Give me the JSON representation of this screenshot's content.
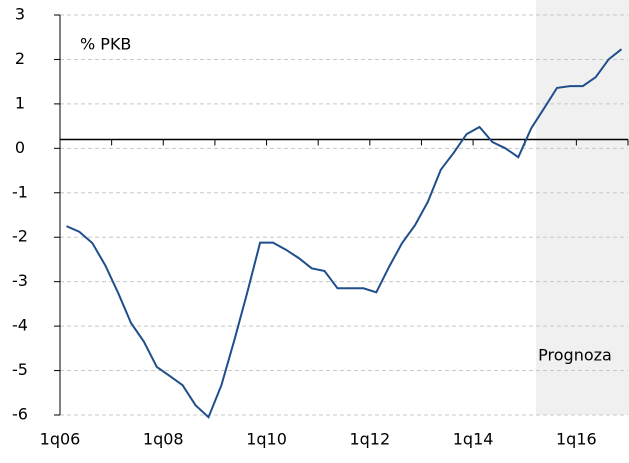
{
  "chart_data": {
    "type": "line",
    "unit_label": "% PKB",
    "annotation": "Prognoza",
    "categories": [
      "1q06",
      null,
      null,
      null,
      null,
      null,
      null,
      null,
      "1q08",
      null,
      null,
      null,
      null,
      null,
      null,
      null,
      "1q10",
      null,
      null,
      null,
      null,
      null,
      null,
      null,
      "1q12",
      null,
      null,
      null,
      null,
      null,
      null,
      null,
      "1q14",
      null,
      null,
      null,
      null,
      null,
      null,
      null,
      "1q16",
      null,
      null,
      null
    ],
    "series": [
      {
        "color": "#1f4e8c",
        "values": [
          -1.75,
          -1.88,
          -2.13,
          -2.63,
          -3.25,
          -3.93,
          -4.35,
          -4.92,
          -5.12,
          -5.33,
          -5.78,
          -6.05,
          -5.33,
          -4.32,
          -3.25,
          -2.12,
          -2.12,
          -2.28,
          -2.47,
          -2.7,
          -2.76,
          -3.15,
          -3.15,
          -3.15,
          -3.24,
          -2.66,
          -2.13,
          -1.73,
          -1.2,
          -0.48,
          -0.1,
          0.32,
          0.48,
          0.14,
          0,
          -0.2,
          0.45,
          0.9,
          1.36,
          1.4,
          1.4,
          1.6,
          2,
          2.23
        ]
      }
    ],
    "ylim": [
      -6,
      3
    ],
    "yticks": [
      -6,
      -5,
      -4,
      -3,
      -2,
      -1,
      0,
      1,
      2,
      3
    ],
    "x_axis_crossing": 0.2,
    "grid": true
  }
}
